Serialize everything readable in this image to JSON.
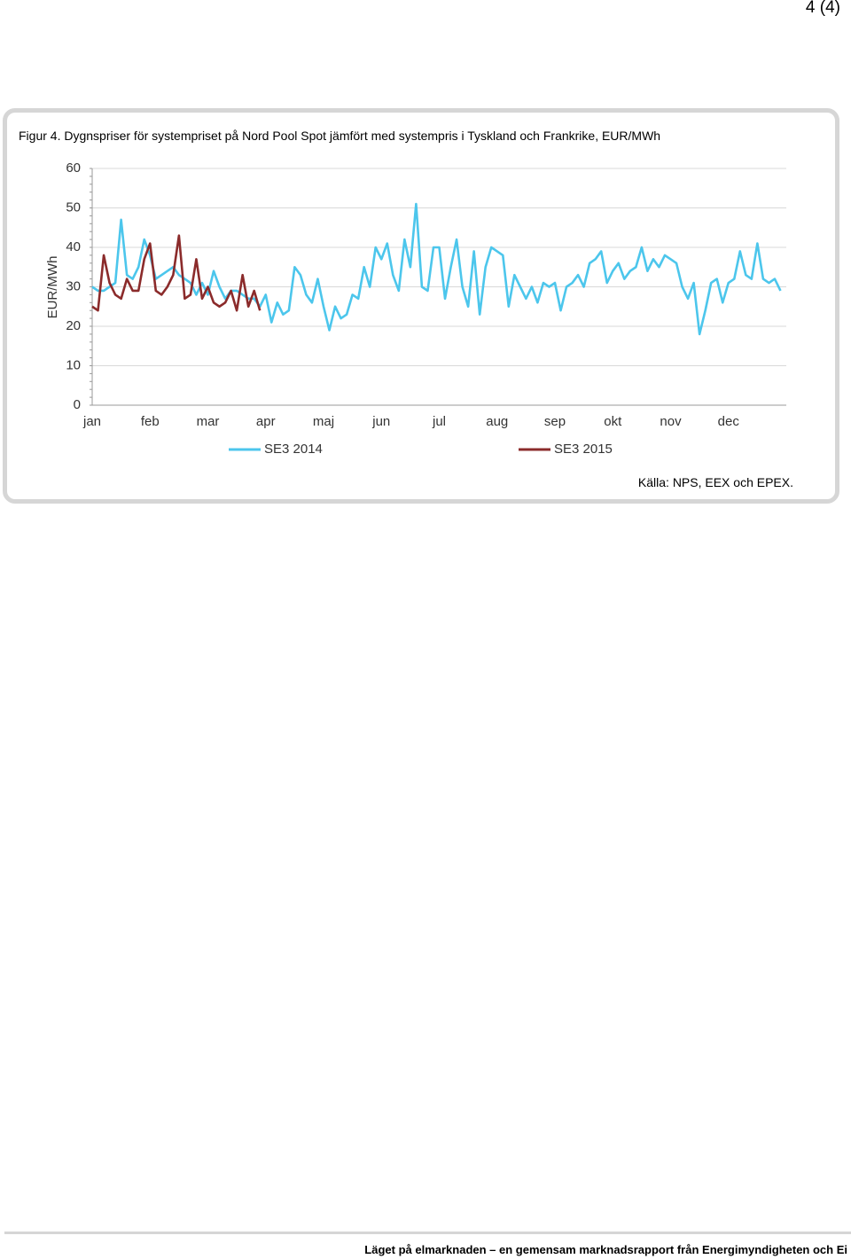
{
  "page": {
    "number": "4 (4)"
  },
  "figure": {
    "caption": "Figur 4. Dygnspriser för systempriset på Nord Pool Spot jämfört med systempris i Tyskland och Frankrike, EUR/MWh",
    "source": "Källa: NPS, EEX och EPEX."
  },
  "chart_data": {
    "type": "line",
    "ylabel": "EUR/MWh",
    "categories": [
      "jan",
      null,
      null,
      null,
      null,
      null,
      null,
      null,
      null,
      null,
      "feb",
      null,
      null,
      null,
      null,
      null,
      null,
      null,
      null,
      null,
      "mar",
      null,
      null,
      null,
      null,
      null,
      null,
      null,
      null,
      null,
      "apr",
      null,
      null,
      null,
      null,
      null,
      null,
      null,
      null,
      null,
      "maj",
      null,
      null,
      null,
      null,
      null,
      null,
      null,
      null,
      null,
      "jun",
      null,
      null,
      null,
      null,
      null,
      null,
      null,
      null,
      null,
      "jul",
      null,
      null,
      null,
      null,
      null,
      null,
      null,
      null,
      null,
      "aug",
      null,
      null,
      null,
      null,
      null,
      null,
      null,
      null,
      null,
      "sep",
      null,
      null,
      null,
      null,
      null,
      null,
      null,
      null,
      null,
      "okt",
      null,
      null,
      null,
      null,
      null,
      null,
      null,
      null,
      null,
      "nov",
      null,
      null,
      null,
      null,
      null,
      null,
      null,
      null,
      null,
      "dec",
      null,
      null,
      null,
      null,
      null,
      null,
      null,
      null,
      null
    ],
    "ylim": [
      0,
      60
    ],
    "yticks": [
      0,
      10,
      20,
      30,
      40,
      50,
      60
    ],
    "grid": true,
    "series": [
      {
        "name": "SE3 2014",
        "color": "#4cc6ec",
        "values": [
          30,
          29,
          29,
          30,
          31,
          47,
          33,
          32,
          35,
          42,
          38,
          32,
          33,
          34,
          35,
          33,
          32,
          31,
          28,
          31,
          28,
          34,
          30,
          27,
          29,
          29,
          28,
          27,
          27,
          25,
          28,
          21,
          26,
          23,
          24,
          35,
          33,
          28,
          26,
          32,
          25,
          19,
          25,
          22,
          23,
          28,
          27,
          35,
          30,
          40,
          37,
          41,
          33,
          29,
          42,
          35,
          51,
          30,
          29,
          40,
          40,
          27,
          35,
          42,
          30,
          25,
          39,
          23,
          35,
          40,
          39,
          38,
          25,
          33,
          30,
          27,
          30,
          26,
          31,
          30,
          31,
          24,
          30,
          31,
          33,
          30,
          36,
          37,
          39,
          31,
          34,
          36,
          32,
          34,
          35,
          40,
          34,
          37,
          35,
          38,
          37,
          36,
          30,
          27,
          31,
          18,
          24,
          31,
          32,
          26,
          31,
          32,
          39,
          33,
          32,
          41,
          32,
          31,
          32,
          29
        ]
      },
      {
        "name": "SE3 2015",
        "color": "#8b2b2b",
        "values": [
          25,
          24,
          38,
          31,
          28,
          27,
          32,
          29,
          29,
          37,
          41,
          29,
          28,
          30,
          33,
          43,
          27,
          28,
          37,
          27,
          30,
          26,
          25,
          26,
          29,
          24,
          33,
          25,
          29,
          24,
          null,
          null,
          null,
          null,
          null,
          null,
          null,
          null,
          null,
          null,
          null,
          null,
          null,
          null,
          null,
          null,
          null,
          null,
          null,
          null,
          null,
          null,
          null,
          null,
          null,
          null,
          null,
          null,
          null,
          null,
          null,
          null,
          null,
          null,
          null,
          null,
          null,
          null,
          null,
          null,
          null,
          null,
          null,
          null,
          null,
          null,
          null,
          null,
          null,
          null,
          null,
          null,
          null,
          null,
          null,
          null,
          null,
          null,
          null,
          null,
          null,
          null,
          null,
          null,
          null,
          null,
          null,
          null,
          null,
          null,
          null,
          null,
          null,
          null,
          null,
          null,
          null,
          null,
          null,
          null,
          null,
          null,
          null,
          null,
          null,
          null,
          null,
          null,
          null,
          null
        ]
      }
    ]
  },
  "footer": {
    "text": "Läget på elmarknaden – en gemensam marknadsrapport från Energimyndigheten och Ei"
  }
}
